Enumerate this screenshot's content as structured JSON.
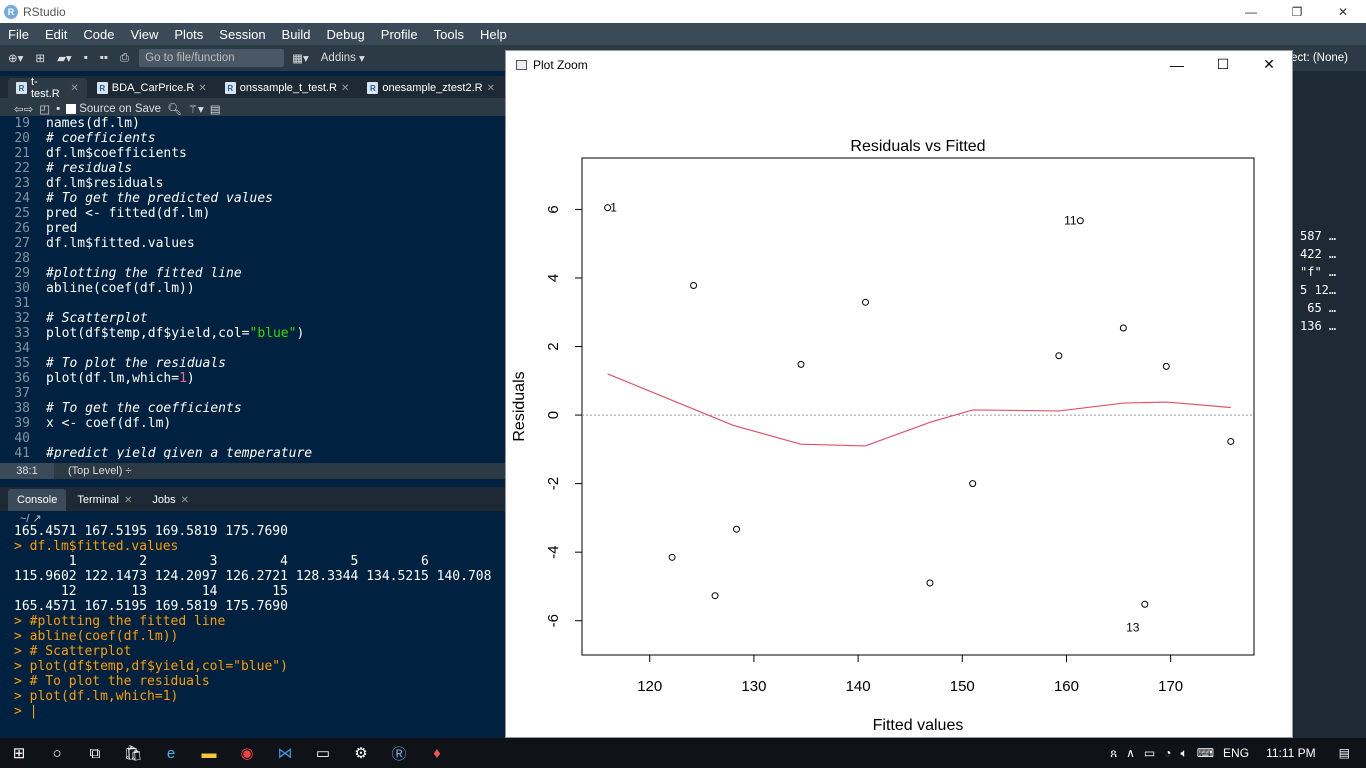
{
  "app": {
    "title": "RStudio",
    "logo_letter": "R",
    "minimize": "—",
    "restore": "❐",
    "close": "✕"
  },
  "menu": [
    "File",
    "Edit",
    "Code",
    "View",
    "Plots",
    "Session",
    "Build",
    "Debug",
    "Profile",
    "Tools",
    "Help"
  ],
  "toolbar": {
    "goto_placeholder": "Go to file/function",
    "addins": "Addins",
    "project": "ect: (None)"
  },
  "editor_tabs": [
    {
      "label": "t-test.R"
    },
    {
      "label": "BDA_CarPrice.R"
    },
    {
      "label": "onssample_t_test.R"
    },
    {
      "label": "onesample_ztest2.R"
    }
  ],
  "editor_toolbar": {
    "source_on_save": "Source on Save"
  },
  "editor_lines": [
    {
      "n": "19",
      "t": "names(df.lm)",
      "k": "code"
    },
    {
      "n": "20",
      "t": "# coefficients",
      "k": "cm"
    },
    {
      "n": "21",
      "t": "df.lm$coefficients",
      "k": "code"
    },
    {
      "n": "22",
      "t": "# residuals",
      "k": "cm"
    },
    {
      "n": "23",
      "t": "df.lm$residuals",
      "k": "code"
    },
    {
      "n": "24",
      "t": "# To get the predicted values",
      "k": "cm"
    },
    {
      "n": "25",
      "t": "pred <- fitted(df.lm)",
      "k": "code"
    },
    {
      "n": "26",
      "t": "pred",
      "k": "code"
    },
    {
      "n": "27",
      "t": "df.lm$fitted.values",
      "k": "code"
    },
    {
      "n": "28",
      "t": "",
      "k": "code"
    },
    {
      "n": "29",
      "t": "#plotting the fitted line",
      "k": "cm"
    },
    {
      "n": "30",
      "t": "abline(coef(df.lm))",
      "k": "code"
    },
    {
      "n": "31",
      "t": "",
      "k": "code"
    },
    {
      "n": "32",
      "t": "# Scatterplot",
      "k": "cm"
    },
    {
      "n": "33",
      "t": "plot(df$temp,df$yield,col=",
      "s": "\"blue\"",
      "e": ")",
      "k": "str"
    },
    {
      "n": "34",
      "t": "",
      "k": "code"
    },
    {
      "n": "35",
      "t": "# To plot the residuals",
      "k": "cm"
    },
    {
      "n": "36",
      "t": "plot(df.lm,which=",
      "s": "1",
      "e": ")",
      "k": "num"
    },
    {
      "n": "37",
      "t": "",
      "k": "code"
    },
    {
      "n": "38",
      "t": "# To get the coefficients",
      "k": "cm"
    },
    {
      "n": "39",
      "t": "x <- coef(df.lm)",
      "k": "code"
    },
    {
      "n": "40",
      "t": "",
      "k": "code"
    },
    {
      "n": "41",
      "t": "#predict yield given a temperature",
      "k": "cm"
    }
  ],
  "editor_status": {
    "pos": "38:1",
    "level": "(Top Level) ÷"
  },
  "console_tabs": [
    "Console",
    "Terminal",
    "Jobs"
  ],
  "console_path": "~/",
  "console_lines": [
    {
      "t": "165.4571 167.5195 169.5819 175.7690",
      "k": "out"
    },
    {
      "t": "> df.lm$fitted.values",
      "k": "in"
    },
    {
      "t": "       1        2        3        4        5        6",
      "k": "out"
    },
    {
      "t": "115.9602 122.1473 124.2097 126.2721 128.3344 134.5215 140.708",
      "k": "out"
    },
    {
      "t": "      12       13       14       15",
      "k": "out"
    },
    {
      "t": "165.4571 167.5195 169.5819 175.7690",
      "k": "out"
    },
    {
      "t": "> #plotting the fitted line",
      "k": "in"
    },
    {
      "t": "> abline(coef(df.lm))",
      "k": "in"
    },
    {
      "t": "> # Scatterplot",
      "k": "in"
    },
    {
      "t": "> plot(df$temp,df$yield,col=\"blue\")",
      "k": "in"
    },
    {
      "t": "> # To plot the residuals",
      "k": "in"
    },
    {
      "t": "> plot(df.lm,which=1)",
      "k": "in"
    },
    {
      "t": "> |",
      "k": "in"
    }
  ],
  "env_snippets": [
    "587 …",
    "422 …",
    "\"f\" …",
    "5 12…",
    " 65 …",
    "136 …"
  ],
  "plot_zoom": {
    "title": "Plot Zoom",
    "minimize": "—",
    "maximize": "☐",
    "close": "✕"
  },
  "chart_data": {
    "type": "scatter",
    "title": "Residuals vs Fitted",
    "xlabel": "Fitted values",
    "ylabel": "Residuals",
    "xlim": [
      113.5,
      178
    ],
    "ylim": [
      -7,
      7.5
    ],
    "x_ticks": [
      120,
      130,
      140,
      150,
      160,
      170
    ],
    "y_ticks": [
      -6,
      -4,
      -2,
      0,
      2,
      4,
      6
    ],
    "points": [
      {
        "x": 115.96,
        "y": 6.05,
        "label": "1"
      },
      {
        "x": 122.15,
        "y": -4.15
      },
      {
        "x": 124.21,
        "y": 3.78
      },
      {
        "x": 126.27,
        "y": -5.27
      },
      {
        "x": 128.33,
        "y": -3.33
      },
      {
        "x": 134.52,
        "y": 1.48
      },
      {
        "x": 140.71,
        "y": 3.29
      },
      {
        "x": 146.9,
        "y": -4.9
      },
      {
        "x": 151.0,
        "y": -2.0
      },
      {
        "x": 159.27,
        "y": 1.73
      },
      {
        "x": 161.33,
        "y": 5.67,
        "label": "11"
      },
      {
        "x": 165.46,
        "y": 2.54
      },
      {
        "x": 167.52,
        "y": -5.52,
        "label": "13"
      },
      {
        "x": 169.58,
        "y": 1.42
      },
      {
        "x": 175.77,
        "y": -0.77
      }
    ],
    "smooth_line": [
      {
        "x": 115.96,
        "y": 1.2
      },
      {
        "x": 122.0,
        "y": 0.45
      },
      {
        "x": 128.0,
        "y": -0.3
      },
      {
        "x": 134.5,
        "y": -0.85
      },
      {
        "x": 140.7,
        "y": -0.9
      },
      {
        "x": 147.0,
        "y": -0.2
      },
      {
        "x": 151.0,
        "y": 0.15
      },
      {
        "x": 159.3,
        "y": 0.12
      },
      {
        "x": 165.5,
        "y": 0.35
      },
      {
        "x": 169.6,
        "y": 0.38
      },
      {
        "x": 175.77,
        "y": 0.22
      }
    ],
    "zero_line": 0,
    "colors": {
      "points": "#000000",
      "smooth": "#df536b",
      "zero": "#999999"
    }
  },
  "taskbar": {
    "lang": "ENG",
    "time": "11:11 PM"
  }
}
